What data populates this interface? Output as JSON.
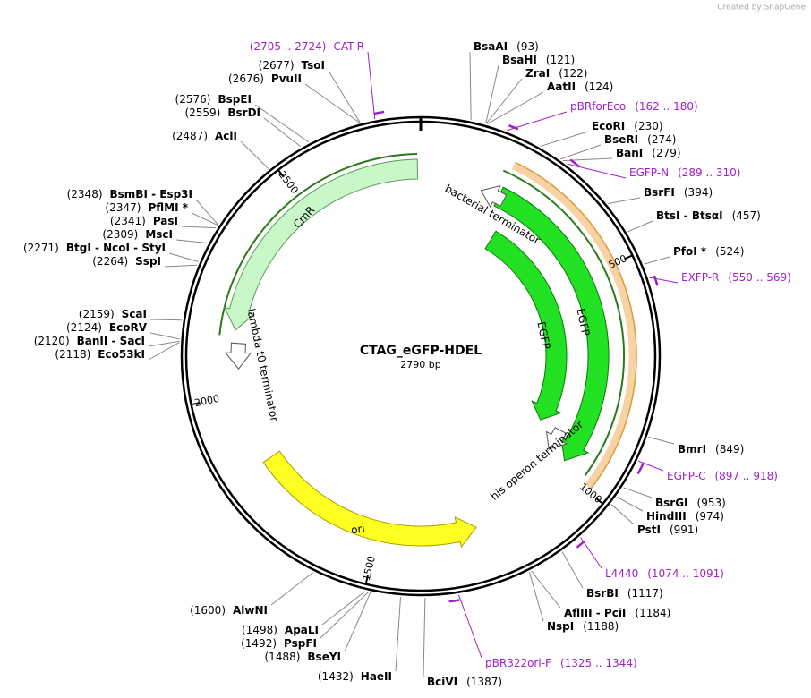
{
  "watermark": "Created by SnapGene",
  "title": "CTAG_eGFP-HDEL",
  "length": "2790 bp",
  "ruler": [
    "500",
    "1000",
    "1500",
    "2000",
    "2500"
  ],
  "features": [
    "CmR",
    "lambda t0 terminator",
    "bacterial terminator",
    "EGFP",
    "EGFP",
    "his operon terminator",
    "ori"
  ],
  "sites": [
    {
      "name": "BsaAI",
      "pos": "(93)"
    },
    {
      "name": "BsaHI",
      "pos": "(121)"
    },
    {
      "name": "ZraI",
      "pos": "(122)"
    },
    {
      "name": "AatII",
      "pos": "(124)"
    },
    {
      "name": "EcoRI",
      "pos": "(230)"
    },
    {
      "name": "BseRI",
      "pos": "(274)"
    },
    {
      "name": "BanI",
      "pos": "(279)"
    },
    {
      "name": "BsrFI",
      "pos": "(394)"
    },
    {
      "name": "BtsI - BtsαI",
      "pos": "(457)"
    },
    {
      "name": "PfoI *",
      "pos": "(524)"
    },
    {
      "name": "BmrI",
      "pos": "(849)"
    },
    {
      "name": "BsrGI",
      "pos": "(953)"
    },
    {
      "name": "HindIII",
      "pos": "(974)"
    },
    {
      "name": "PstI",
      "pos": "(991)"
    },
    {
      "name": "BsrBI",
      "pos": "(1117)"
    },
    {
      "name": "AflIII - PciI",
      "pos": "(1184)"
    },
    {
      "name": "NspI",
      "pos": "(1188)"
    },
    {
      "name": "BciVI",
      "pos": "(1387)"
    },
    {
      "name": "HaeII",
      "pos": "(1432)"
    },
    {
      "name": "BseYI",
      "pos": "(1488)"
    },
    {
      "name": "PspFI",
      "pos": "(1492)"
    },
    {
      "name": "ApaLI",
      "pos": "(1498)"
    },
    {
      "name": "AlwNI",
      "pos": "(1600)"
    },
    {
      "name": "Eco53kI",
      "pos": "(2118)"
    },
    {
      "name": "BanII - SacI",
      "pos": "(2120)"
    },
    {
      "name": "EcoRV",
      "pos": "(2124)"
    },
    {
      "name": "ScaI",
      "pos": "(2159)"
    },
    {
      "name": "SspI",
      "pos": "(2264)"
    },
    {
      "name": "BtgI - NcoI - StyI",
      "pos": "(2271)"
    },
    {
      "name": "MscI",
      "pos": "(2309)"
    },
    {
      "name": "PasI",
      "pos": "(2341)"
    },
    {
      "name": "PflMI *",
      "pos": "(2347)"
    },
    {
      "name": "BsmBI - Esp3I",
      "pos": "(2348)"
    },
    {
      "name": "AclI",
      "pos": "(2487)"
    },
    {
      "name": "BsrDI",
      "pos": "(2559)"
    },
    {
      "name": "BspEI",
      "pos": "(2576)"
    },
    {
      "name": "PvuII",
      "pos": "(2676)"
    },
    {
      "name": "TsoI",
      "pos": "(2677)"
    }
  ],
  "primers": [
    {
      "name": "CAT-R",
      "range": "(2705 .. 2724)"
    },
    {
      "name": "pBRforEco",
      "range": "(162 .. 180)"
    },
    {
      "name": "EGFP-N",
      "range": "(289 .. 310)"
    },
    {
      "name": "EXFP-R",
      "range": "(550 .. 569)"
    },
    {
      "name": "EGFP-C",
      "range": "(897 .. 918)"
    },
    {
      "name": "L4440",
      "range": "(1074 .. 1091)"
    },
    {
      "name": "pBR322ori-F",
      "range": "(1325 .. 1344)"
    }
  ]
}
